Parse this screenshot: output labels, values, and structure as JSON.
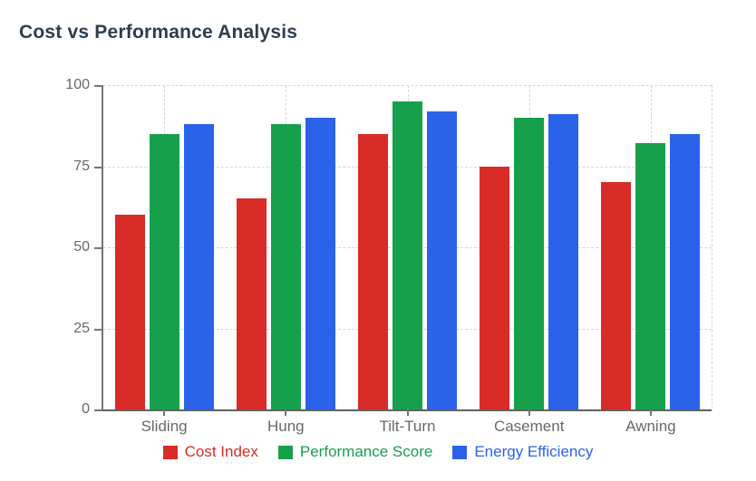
{
  "header": {
    "title": "Cost vs Performance Analysis",
    "title_color": "#2d3e50"
  },
  "chart_data": {
    "type": "bar",
    "title": "Cost vs Performance Analysis",
    "categories": [
      "Sliding",
      "Hung",
      "Tilt-Turn",
      "Casement",
      "Awning"
    ],
    "series": [
      {
        "name": "Cost Index",
        "color": "#d92b27",
        "values": [
          60,
          65,
          85,
          75,
          70
        ]
      },
      {
        "name": "Performance Score",
        "color": "#17a04c",
        "values": [
          85,
          88,
          95,
          90,
          82
        ]
      },
      {
        "name": "Energy Efficiency",
        "color": "#2a62e9",
        "values": [
          88,
          90,
          92,
          91,
          85
        ]
      }
    ],
    "ylim": [
      0,
      100
    ],
    "yticks": [
      0,
      25,
      50,
      75,
      100
    ],
    "grid": true,
    "grid_style": "dashed",
    "grid_color": "#d6d6d6",
    "axis_color": "#757575",
    "tick_label_color": "#65696e",
    "legend_position": "bottom"
  }
}
